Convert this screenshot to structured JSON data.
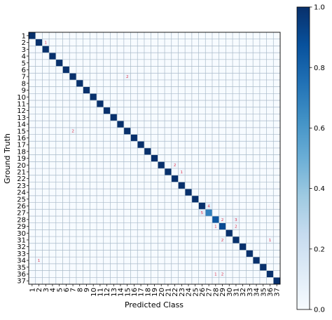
{
  "chart_data": {
    "type": "heatmap",
    "title": "",
    "xlabel": "Predicted Class",
    "ylabel": "Ground Truth",
    "categories": [
      "1",
      "2",
      "3",
      "4",
      "5",
      "6",
      "7",
      "8",
      "9",
      "10",
      "11",
      "12",
      "13",
      "14",
      "15",
      "16",
      "17",
      "18",
      "19",
      "20",
      "21",
      "22",
      "23",
      "24",
      "25",
      "26",
      "27",
      "28",
      "29",
      "30",
      "31",
      "32",
      "33",
      "34",
      "35",
      "36",
      "37"
    ],
    "colorbar": {
      "ticks": [
        "0.0",
        "0.2",
        "0.4",
        "0.6",
        "0.8",
        "1.0"
      ],
      "range": [
        0,
        1
      ],
      "colormap": "Blues"
    },
    "grid": true,
    "diagonal_default": 1.0,
    "diagonal_overrides": [
      {
        "row": "27",
        "value": 0.7
      },
      {
        "row": "28",
        "value": 0.85
      },
      {
        "row": "29",
        "value": 0.9
      }
    ],
    "off_diagonal_counts": [
      {
        "row": "2",
        "col": "3",
        "value": 1
      },
      {
        "row": "7",
        "col": "15",
        "value": 2
      },
      {
        "row": "15",
        "col": "7",
        "value": 2
      },
      {
        "row": "20",
        "col": "22",
        "value": 2
      },
      {
        "row": "21",
        "col": "23",
        "value": 1
      },
      {
        "row": "26",
        "col": "27",
        "value": 4
      },
      {
        "row": "27",
        "col": "26",
        "value": 5
      },
      {
        "row": "28",
        "col": "29",
        "value": 2
      },
      {
        "row": "28",
        "col": "31",
        "value": 3
      },
      {
        "row": "29",
        "col": "28",
        "value": 1
      },
      {
        "row": "29",
        "col": "31",
        "value": 2
      },
      {
        "row": "31",
        "col": "29",
        "value": 2
      },
      {
        "row": "31",
        "col": "36",
        "value": 1
      },
      {
        "row": "34",
        "col": "2",
        "value": 1
      },
      {
        "row": "36",
        "col": "28",
        "value": 1
      },
      {
        "row": "36",
        "col": "29",
        "value": 2
      }
    ],
    "colors": {
      "grid": "#a9bac9",
      "count_text": "#e0304a",
      "frame": "#000000"
    }
  }
}
